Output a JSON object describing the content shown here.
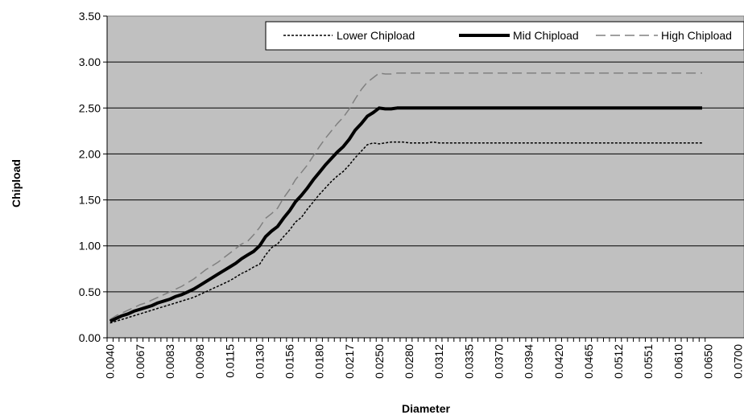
{
  "chart_data": {
    "type": "line",
    "title": "",
    "xlabel": "Diameter",
    "ylabel": "Chipload",
    "ylim": [
      0,
      3.5
    ],
    "yticks": [
      "0.00",
      "0.50",
      "1.00",
      "1.50",
      "2.00",
      "2.50",
      "3.00",
      "3.50"
    ],
    "grid": "horizontal",
    "legend_position": "top-right",
    "x_tick_labels": [
      "0.0040",
      "0.0067",
      "0.0083",
      "0.0098",
      "0.0115",
      "0.0130",
      "0.0156",
      "0.0180",
      "0.0217",
      "0.0250",
      "0.0280",
      "0.0312",
      "0.0335",
      "0.0370",
      "0.0394",
      "0.0420",
      "0.0465",
      "0.0512",
      "0.0551",
      "0.0610",
      "0.0650",
      "0.0700"
    ],
    "plot_background": "#C0C0C0",
    "series": [
      {
        "name": "Lower Chipload",
        "style": "dotted",
        "color": "#000000",
        "values": [
          0.16,
          0.18,
          0.2,
          0.22,
          0.24,
          0.26,
          0.28,
          0.3,
          0.32,
          0.34,
          0.36,
          0.38,
          0.4,
          0.42,
          0.44,
          0.47,
          0.5,
          0.53,
          0.56,
          0.59,
          0.62,
          0.66,
          0.7,
          0.73,
          0.77,
          0.8,
          0.9,
          0.98,
          1.02,
          1.1,
          1.17,
          1.26,
          1.31,
          1.4,
          1.48,
          1.56,
          1.63,
          1.7,
          1.76,
          1.81,
          1.88,
          1.96,
          2.03,
          2.1,
          2.12,
          2.11,
          2.12,
          2.13,
          2.13,
          2.13,
          2.12,
          2.12,
          2.12,
          2.12,
          2.13,
          2.12,
          2.12,
          2.12,
          2.12,
          2.12,
          2.12,
          2.12,
          2.12,
          2.12,
          2.12,
          2.12,
          2.12,
          2.12,
          2.12,
          2.12,
          2.12,
          2.12,
          2.12,
          2.12,
          2.12,
          2.12,
          2.12,
          2.12,
          2.12,
          2.12,
          2.12,
          2.12,
          2.12,
          2.12,
          2.12,
          2.12,
          2.12,
          2.12,
          2.12,
          2.12,
          2.12,
          2.12,
          2.12,
          2.12,
          2.12,
          2.12,
          2.12,
          2.12,
          2.12,
          2.12
        ]
      },
      {
        "name": "Mid Chipload",
        "style": "solid-thick",
        "color": "#000000",
        "values": [
          0.18,
          0.21,
          0.24,
          0.26,
          0.29,
          0.31,
          0.33,
          0.35,
          0.38,
          0.4,
          0.42,
          0.45,
          0.47,
          0.5,
          0.53,
          0.57,
          0.61,
          0.65,
          0.69,
          0.73,
          0.77,
          0.81,
          0.86,
          0.9,
          0.94,
          1.0,
          1.1,
          1.16,
          1.21,
          1.3,
          1.38,
          1.48,
          1.55,
          1.63,
          1.72,
          1.8,
          1.88,
          1.95,
          2.02,
          2.08,
          2.16,
          2.26,
          2.33,
          2.41,
          2.45,
          2.5,
          2.49,
          2.49,
          2.5,
          2.5,
          2.5,
          2.5,
          2.5,
          2.5,
          2.5,
          2.5,
          2.5,
          2.5,
          2.5,
          2.5,
          2.5,
          2.5,
          2.5,
          2.5,
          2.5,
          2.5,
          2.5,
          2.5,
          2.5,
          2.5,
          2.5,
          2.5,
          2.5,
          2.5,
          2.5,
          2.5,
          2.5,
          2.5,
          2.5,
          2.5,
          2.5,
          2.5,
          2.5,
          2.5,
          2.5,
          2.5,
          2.5,
          2.5,
          2.5,
          2.5,
          2.5,
          2.5,
          2.5,
          2.5,
          2.5,
          2.5,
          2.5,
          2.5,
          2.5,
          2.5
        ]
      },
      {
        "name": "High Chipload",
        "style": "dashed",
        "color": "#808080",
        "values": [
          0.2,
          0.24,
          0.27,
          0.3,
          0.33,
          0.36,
          0.38,
          0.41,
          0.44,
          0.47,
          0.5,
          0.53,
          0.56,
          0.6,
          0.64,
          0.69,
          0.74,
          0.78,
          0.82,
          0.87,
          0.92,
          0.97,
          1.02,
          1.05,
          1.12,
          1.2,
          1.3,
          1.35,
          1.41,
          1.52,
          1.61,
          1.72,
          1.8,
          1.88,
          1.98,
          2.08,
          2.17,
          2.25,
          2.33,
          2.4,
          2.49,
          2.6,
          2.7,
          2.78,
          2.83,
          2.88,
          2.87,
          2.87,
          2.88,
          2.88,
          2.88,
          2.88,
          2.88,
          2.88,
          2.88,
          2.88,
          2.88,
          2.88,
          2.88,
          2.88,
          2.88,
          2.88,
          2.88,
          2.88,
          2.88,
          2.88,
          2.88,
          2.88,
          2.88,
          2.88,
          2.88,
          2.88,
          2.88,
          2.88,
          2.88,
          2.88,
          2.88,
          2.88,
          2.88,
          2.88,
          2.88,
          2.88,
          2.88,
          2.88,
          2.88,
          2.88,
          2.88,
          2.88,
          2.88,
          2.88,
          2.88,
          2.88,
          2.88,
          2.88,
          2.88,
          2.88,
          2.88,
          2.88,
          2.88,
          2.88
        ]
      }
    ]
  }
}
